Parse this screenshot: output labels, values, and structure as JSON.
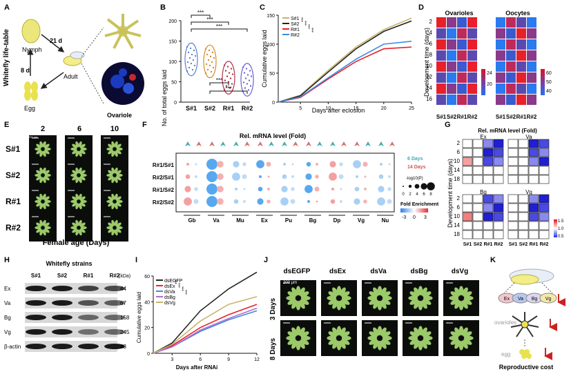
{
  "panels": [
    "A",
    "B",
    "C",
    "D",
    "E",
    "F",
    "G",
    "H",
    "I",
    "J",
    "K"
  ],
  "panelA": {
    "side": "Whitefly life-table",
    "nymph": "Nymph",
    "adult": "Adult",
    "egg": "Egg",
    "ovariole": "Ovariole",
    "d1": "21 d",
    "d2": "8 d"
  },
  "chart_data": [
    {
      "id": "B",
      "type": "violin",
      "title": "",
      "ylabel": "No. of total eggs laid",
      "categories": [
        "S#1",
        "S#2",
        "R#1",
        "R#2"
      ],
      "medians": [
        105,
        100,
        60,
        55
      ],
      "ylim": [
        0,
        200
      ],
      "yticks": [
        0,
        50,
        100,
        150,
        200
      ],
      "significance": [
        "***",
        "***",
        "***",
        "***",
        "***"
      ]
    },
    {
      "id": "C",
      "type": "line",
      "xlabel": "Days after eclosion",
      "ylabel": "Cumulative eggs laid",
      "ylim": [
        0,
        150
      ],
      "yticks": [
        0,
        50,
        100,
        150
      ],
      "xticks": [
        5,
        10,
        15,
        20,
        25
      ],
      "series": [
        {
          "name": "S#1",
          "color": "#c8b46a",
          "x": [
            1,
            5,
            10,
            15,
            20,
            25
          ],
          "y": [
            0,
            12,
            55,
            95,
            125,
            145
          ]
        },
        {
          "name": "S#2",
          "color": "#222222",
          "x": [
            1,
            5,
            10,
            15,
            20,
            25
          ],
          "y": [
            0,
            11,
            52,
            92,
            122,
            140
          ]
        },
        {
          "name": "R#1",
          "color": "#e8202a",
          "x": [
            1,
            5,
            10,
            15,
            20,
            25
          ],
          "y": [
            0,
            8,
            40,
            70,
            92,
            95
          ]
        },
        {
          "name": "R#2",
          "color": "#3a8de0",
          "x": [
            1,
            5,
            10,
            15,
            20,
            25
          ],
          "y": [
            0,
            9,
            42,
            74,
            100,
            105
          ]
        }
      ],
      "significance": [
        "***",
        "***",
        "***",
        "***"
      ]
    },
    {
      "id": "I",
      "type": "line",
      "xlabel": "Days after RNAi",
      "ylabel": "Cumulative eggs laid",
      "ylim": [
        0,
        60
      ],
      "yticks": [
        0,
        20,
        40,
        60
      ],
      "xticks": [
        3,
        6,
        9,
        12
      ],
      "series": [
        {
          "name": "dsEGFP",
          "color": "#222222",
          "x": [
            1,
            3,
            6,
            9,
            12
          ],
          "y": [
            0,
            8,
            33,
            50,
            63
          ]
        },
        {
          "name": "dsEx",
          "color": "#e8202a",
          "x": [
            1,
            3,
            6,
            9,
            12
          ],
          "y": [
            0,
            6,
            20,
            30,
            38
          ]
        },
        {
          "name": "dsVa",
          "color": "#3a8de0",
          "x": [
            1,
            3,
            6,
            9,
            12
          ],
          "y": [
            0,
            5,
            17,
            26,
            33
          ]
        },
        {
          "name": "dsBg",
          "color": "#b06ad0",
          "x": [
            1,
            3,
            6,
            9,
            12
          ],
          "y": [
            0,
            5,
            18,
            27,
            35
          ]
        },
        {
          "name": "dsVg",
          "color": "#c8b46a",
          "x": [
            1,
            3,
            6,
            9,
            12
          ],
          "y": [
            0,
            7,
            25,
            38,
            44
          ]
        }
      ],
      "significance": [
        "***",
        "***",
        "***",
        "***"
      ]
    }
  ],
  "panelD": {
    "titles": [
      "Ovarioles",
      "Oocytes"
    ],
    "ylabel": "Development time (days)",
    "rows": [
      "2",
      "4",
      "6",
      "8",
      "10",
      "12",
      "14",
      "16"
    ],
    "cols": [
      "S#1",
      "S#2",
      "R#1",
      "R#2"
    ],
    "scale1": [
      "24",
      "20"
    ],
    "scale2": [
      "60",
      "50",
      "40"
    ]
  },
  "panelE": {
    "cols": [
      "2",
      "6",
      "10"
    ],
    "rows": [
      "S#1",
      "S#2",
      "R#1",
      "R#2"
    ],
    "xlabel": "Female age (Days)",
    "scale": "200 µm"
  },
  "panelF": {
    "title": "Rel. mRNA level (Fold)",
    "rows": [
      "R#1/S#1",
      "R#2/S#1",
      "R#1/S#2",
      "R#2/S#2"
    ],
    "cols": [
      "Gb",
      "Va",
      "Mu",
      "Ex",
      "Pu",
      "Bg",
      "Dp",
      "Vg",
      "Nu"
    ],
    "legend1": "6 Days",
    "legend2": "14 Days",
    "sizeTitle": "-log10(P)",
    "sizes": [
      "0",
      "2",
      "4",
      "6",
      "8"
    ],
    "colorTitle": "Fold Enrichment",
    "colorTicks": [
      "-3",
      "0",
      "3"
    ]
  },
  "panelG": {
    "title": "Rel. mRNA level (Fold)",
    "genes": [
      "Ex",
      "Va",
      "Bg",
      "Vg"
    ],
    "rows": [
      "2",
      "6",
      "10",
      "14",
      "18"
    ],
    "cols": [
      "S#1",
      "S#2",
      "R#1",
      "R#2"
    ],
    "ylabel": "Development time (days)",
    "scale": [
      "1.5",
      "1.0",
      "0.5"
    ]
  },
  "panelH": {
    "title": "Whitefly strains",
    "cols": [
      "S#1",
      "S#2",
      "R#1",
      "R#2"
    ],
    "unit": "(kDa)",
    "rows": [
      {
        "name": "Ex",
        "kda": "44"
      },
      {
        "name": "Va",
        "kda": "67"
      },
      {
        "name": "Bg",
        "kda": "158"
      },
      {
        "name": "Vg",
        "kda": "245"
      },
      {
        "name": "β-actin",
        "kda": "43"
      }
    ]
  },
  "panelJ": {
    "cols": [
      "dsEGFP",
      "dsEx",
      "dsVa",
      "dsBg",
      "dsVg"
    ],
    "rows": [
      "3 Days",
      "8 Days"
    ],
    "scale": "200 µm"
  },
  "panelK": {
    "genes": [
      "Ex",
      "Va",
      "Bg",
      "Vg"
    ],
    "ovaries": "ovarioles",
    "egg": "egg",
    "caption": "Reproductive cost"
  }
}
